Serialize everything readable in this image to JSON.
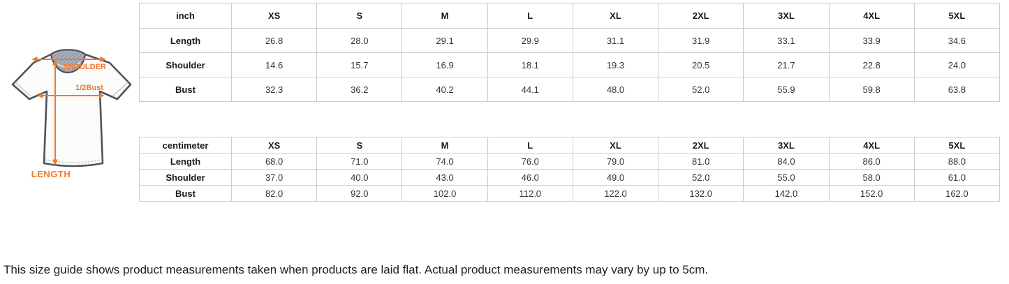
{
  "accent_color": "#f0792a",
  "table_border_color": "#cccccc",
  "diagram": {
    "shoulder_label": "SHOULDER",
    "half_bust_label": "1/2Bust",
    "length_label": "LENGTH"
  },
  "tables": [
    {
      "unit_label": "inch",
      "columns": [
        "XS",
        "S",
        "M",
        "L",
        "XL",
        "2XL",
        "3XL",
        "4XL",
        "5XL"
      ],
      "rows": [
        {
          "label": "Length",
          "values": [
            "26.8",
            "28.0",
            "29.1",
            "29.9",
            "31.1",
            "31.9",
            "33.1",
            "33.9",
            "34.6"
          ]
        },
        {
          "label": "Shoulder",
          "values": [
            "14.6",
            "15.7",
            "16.9",
            "18.1",
            "19.3",
            "20.5",
            "21.7",
            "22.8",
            "24.0"
          ]
        },
        {
          "label": "Bust",
          "values": [
            "32.3",
            "36.2",
            "40.2",
            "44.1",
            "48.0",
            "52.0",
            "55.9",
            "59.8",
            "63.8"
          ]
        }
      ]
    },
    {
      "unit_label": "centimeter",
      "columns": [
        "XS",
        "S",
        "M",
        "L",
        "XL",
        "2XL",
        "3XL",
        "4XL",
        "5XL"
      ],
      "rows": [
        {
          "label": "Length",
          "values": [
            "68.0",
            "71.0",
            "74.0",
            "76.0",
            "79.0",
            "81.0",
            "84.0",
            "86.0",
            "88.0"
          ]
        },
        {
          "label": "Shoulder",
          "values": [
            "37.0",
            "40.0",
            "43.0",
            "46.0",
            "49.0",
            "52.0",
            "55.0",
            "58.0",
            "61.0"
          ]
        },
        {
          "label": "Bust",
          "values": [
            "82.0",
            "92.0",
            "102.0",
            "112.0",
            "122.0",
            "132.0",
            "142.0",
            "152.0",
            "162.0"
          ]
        }
      ]
    }
  ],
  "footnote": "This size guide shows product measurements taken when products are laid flat. Actual product measurements may vary by up to 5cm."
}
